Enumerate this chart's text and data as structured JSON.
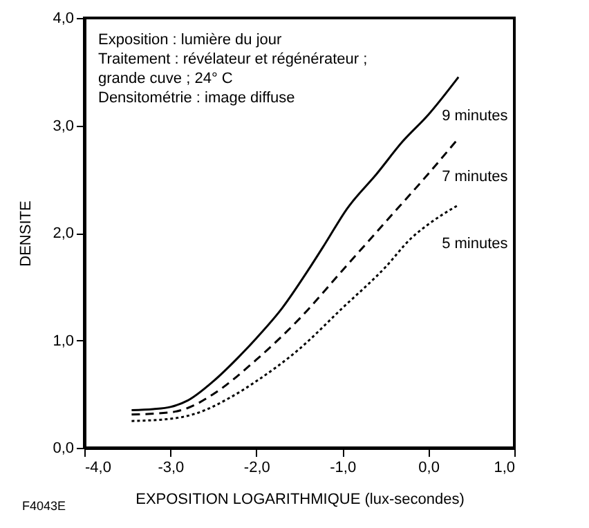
{
  "chart_data": {
    "type": "line",
    "xlabel": "EXPOSITION LOGARITHMIQUE (lux-secondes)",
    "ylabel": "DENSITE",
    "annotations": [
      "Exposition : lumière du jour",
      "Traitement : révélateur et régénérateur ; grande cuve ; 24° C",
      "Densitométrie : image diffuse",
      "F4043E"
    ],
    "xlim": [
      -4,
      1
    ],
    "ylim": [
      0,
      4
    ],
    "xticks": [
      {
        "value": -4,
        "label": "-4,0"
      },
      {
        "value": -3,
        "label": "-3,0"
      },
      {
        "value": -2,
        "label": "-2,0"
      },
      {
        "value": -1,
        "label": "-1,0"
      },
      {
        "value": 0,
        "label": "0,0"
      },
      {
        "value": 1,
        "label": "1,0"
      }
    ],
    "yticks": [
      {
        "value": 0,
        "label": "0,0"
      },
      {
        "value": 1,
        "label": "1,0"
      },
      {
        "value": 2,
        "label": "2,0"
      },
      {
        "value": 3,
        "label": "3,0"
      },
      {
        "value": 4,
        "label": "4,0"
      }
    ],
    "grid": false,
    "marker": "none",
    "series": [
      {
        "name": "9 minutes",
        "color": "#000000",
        "line_style": "solid",
        "x": [
          -3.45,
          -3.2,
          -3.0,
          -2.8,
          -2.5,
          -2.2,
          -2.0,
          -1.7,
          -1.4,
          -1.2,
          -0.95,
          -0.6,
          -0.3,
          0,
          0.35
        ],
        "values": [
          0.35,
          0.36,
          0.38,
          0.44,
          0.62,
          0.85,
          1.02,
          1.3,
          1.65,
          1.9,
          2.22,
          2.55,
          2.85,
          3.1,
          3.45
        ]
      },
      {
        "name": "7 minutes",
        "color": "#000000",
        "line_style": "dashed",
        "x": [
          -3.45,
          -3.0,
          -2.8,
          -2.5,
          -2.0,
          -1.5,
          -1.0,
          -0.5,
          0,
          0.35
        ],
        "values": [
          0.31,
          0.33,
          0.37,
          0.5,
          0.82,
          1.2,
          1.65,
          2.1,
          2.55,
          2.88
        ]
      },
      {
        "name": "5 minutes",
        "color": "#000000",
        "line_style": "dotted",
        "x": [
          -3.45,
          -3.0,
          -2.7,
          -2.3,
          -2.0,
          -1.5,
          -1.0,
          -0.5,
          -0.2,
          0,
          0.35
        ],
        "values": [
          0.25,
          0.27,
          0.32,
          0.47,
          0.62,
          0.92,
          1.3,
          1.68,
          1.95,
          2.08,
          2.26
        ]
      }
    ]
  }
}
